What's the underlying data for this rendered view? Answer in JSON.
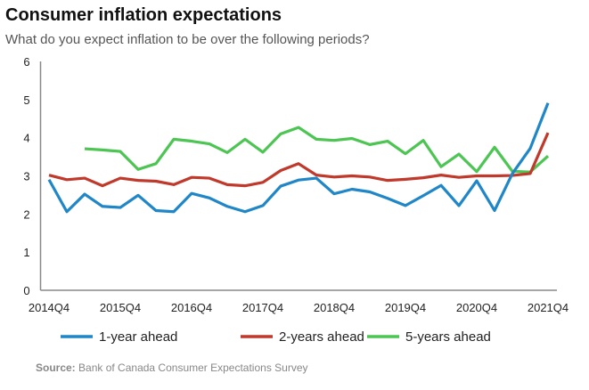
{
  "title": "Consumer inflation expectations",
  "subtitle": "What do you expect inflation to be over the following periods?",
  "source_label": "Source:",
  "source_text": "Bank of Canada Consumer Expectations Survey",
  "chart_data": {
    "type": "line",
    "title": "Consumer inflation expectations",
    "xlabel": "",
    "ylabel": "",
    "ylim": [
      0,
      6
    ],
    "yticks": [
      0,
      1,
      2,
      3,
      4,
      5,
      6
    ],
    "x": [
      "2014Q4",
      "2015Q1",
      "2015Q2",
      "2015Q3",
      "2015Q4",
      "2016Q1",
      "2016Q2",
      "2016Q3",
      "2016Q4",
      "2017Q1",
      "2017Q2",
      "2017Q3",
      "2017Q4",
      "2018Q1",
      "2018Q2",
      "2018Q3",
      "2018Q4",
      "2019Q1",
      "2019Q2",
      "2019Q3",
      "2019Q4",
      "2020Q1",
      "2020Q2",
      "2020Q3",
      "2020Q4",
      "2021Q1",
      "2021Q2",
      "2021Q3",
      "2021Q4"
    ],
    "xticks": [
      "2014Q4",
      "2015Q4",
      "2016Q4",
      "2017Q4",
      "2018Q4",
      "2019Q4",
      "2020Q4",
      "2021Q4"
    ],
    "legend": "bottom",
    "series": [
      {
        "name": "1-year ahead",
        "color": "#1f86c8",
        "values": [
          2.9,
          2.06,
          2.52,
          2.2,
          2.17,
          2.49,
          2.09,
          2.06,
          2.54,
          2.42,
          2.2,
          2.06,
          2.22,
          2.73,
          2.89,
          2.94,
          2.53,
          2.65,
          2.58,
          2.41,
          2.22,
          2.48,
          2.75,
          2.22,
          2.87,
          2.09,
          3.06,
          3.72,
          4.91
        ]
      },
      {
        "name": "2-years ahead",
        "color": "#c0392b",
        "values": [
          3.02,
          2.9,
          2.94,
          2.74,
          2.94,
          2.88,
          2.86,
          2.77,
          2.96,
          2.94,
          2.77,
          2.74,
          2.83,
          3.14,
          3.32,
          3.02,
          2.97,
          3.0,
          2.97,
          2.88,
          2.91,
          2.95,
          3.02,
          2.96,
          3.0,
          3.0,
          3.01,
          3.06,
          4.13
        ]
      },
      {
        "name": "5-years ahead",
        "color": "#4cc552",
        "values": [
          null,
          null,
          3.71,
          3.68,
          3.64,
          3.17,
          3.32,
          3.96,
          3.91,
          3.84,
          3.61,
          3.96,
          3.62,
          4.1,
          4.27,
          3.96,
          3.93,
          3.98,
          3.82,
          3.91,
          3.58,
          3.93,
          3.24,
          3.57,
          3.11,
          3.75,
          3.12,
          3.1,
          3.52
        ]
      }
    ]
  }
}
